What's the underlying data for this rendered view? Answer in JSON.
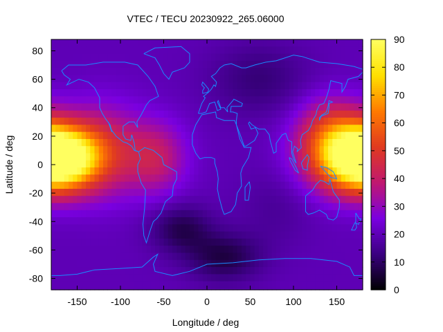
{
  "chart_data": {
    "type": "heatmap",
    "title": "VTEC / TECU 20230922_265.06000",
    "xlabel": "Longitude / deg",
    "ylabel": "Latitude / deg",
    "xlim": [
      -180,
      180
    ],
    "ylim": [
      -88,
      88
    ],
    "xticks": [
      -150,
      -100,
      -50,
      0,
      50,
      100,
      150
    ],
    "yticks": [
      -80,
      -60,
      -40,
      -20,
      0,
      20,
      40,
      60,
      80
    ],
    "colorbar": {
      "min": 0,
      "max": 90,
      "ticks": [
        0,
        10,
        20,
        30,
        40,
        50,
        60,
        70,
        80,
        90
      ]
    },
    "colormap": [
      "#000000",
      "#3a0080",
      "#7a00e0",
      "#c01870",
      "#e03a20",
      "#ff7a00",
      "#ffe000",
      "#ffff60"
    ],
    "coastline_color": "#1a8cff",
    "background_vtec": 20,
    "features": [
      {
        "name": "pacific-crest-west",
        "lon": -170,
        "lat": 4,
        "peak": 68,
        "lon_sigma": 30,
        "lat_sigma": 15
      },
      {
        "name": "pacific-crest-west-2",
        "lon": -120,
        "lat": 10,
        "peak": 22,
        "lon_sigma": 30,
        "lat_sigma": 22
      },
      {
        "name": "americas-band",
        "lon": -60,
        "lat": 5,
        "peak": 20,
        "lon_sigma": 25,
        "lat_sigma": 18
      },
      {
        "name": "west-pacific-crest",
        "lon": 160,
        "lat": 8,
        "peak": 50,
        "lon_sigma": 35,
        "lat_sigma": 18
      },
      {
        "name": "east-asia-ext",
        "lon": 140,
        "lat": 30,
        "peak": 12,
        "lon_sigma": 25,
        "lat_sigma": 15
      },
      {
        "name": "south-atlantic-low",
        "lon": -30,
        "lat": -45,
        "peak": -12,
        "lon_sigma": 25,
        "lat_sigma": 12
      },
      {
        "name": "southern-low",
        "lon": 20,
        "lat": -65,
        "peak": -13,
        "lon_sigma": 30,
        "lat_sigma": 12
      },
      {
        "name": "north-low",
        "lon": 60,
        "lat": 60,
        "peak": -8,
        "lon_sigma": 40,
        "lat_sigma": 18
      },
      {
        "name": "indian-ocean",
        "lon": 80,
        "lat": -30,
        "peak": -4,
        "lon_sigma": 30,
        "lat_sigma": 20
      }
    ]
  }
}
